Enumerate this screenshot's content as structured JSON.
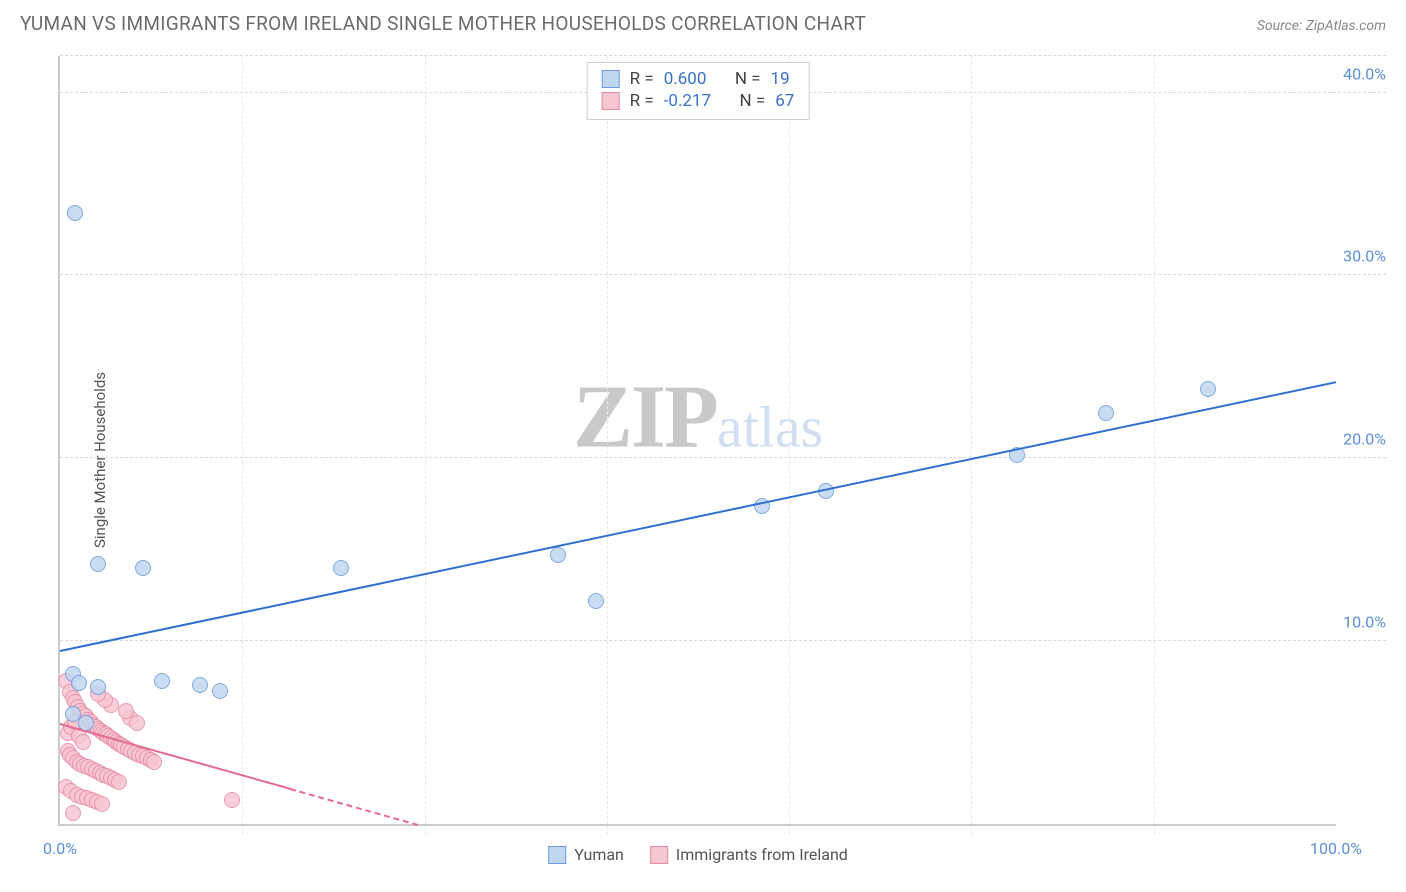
{
  "header": {
    "title": "YUMAN VS IMMIGRANTS FROM IRELAND SINGLE MOTHER HOUSEHOLDS CORRELATION CHART",
    "source": "Source: ZipAtlas.com"
  },
  "watermark": {
    "zip": "ZIP",
    "atlas": "atlas"
  },
  "chart": {
    "type": "scatter",
    "ylabel": "Single Mother Households",
    "xlim": [
      0,
      100
    ],
    "ylim": [
      0,
      42
    ],
    "xtick_min_label": "0.0%",
    "xtick_max_label": "100.0%",
    "ytick_labels": [
      "10.0%",
      "20.0%",
      "30.0%",
      "40.0%"
    ],
    "ytick_values": [
      10,
      20,
      30,
      40
    ],
    "xgrid_values": [
      14.3,
      28.6,
      42.9,
      57.1,
      71.4,
      85.7
    ],
    "axis_label_color": "#5a8fd6",
    "grid_color": "#d8d8d8",
    "background_color": "#ffffff",
    "series": {
      "yuman": {
        "label": "Yuman",
        "color_fill": "#c1d7f0",
        "color_stroke": "#6a9cd9",
        "line_color": "#2e6fd0",
        "r_label": "R =",
        "r_value": "0.600",
        "n_label": "N =",
        "n_value": "19",
        "regression": {
          "x0": 0,
          "y0": 9.5,
          "x1": 100,
          "y1": 24.2,
          "dashed": false
        },
        "points": [
          {
            "x": 1.2,
            "y": 33.4
          },
          {
            "x": 3.0,
            "y": 14.2
          },
          {
            "x": 6.5,
            "y": 14.0
          },
          {
            "x": 22.0,
            "y": 14.0
          },
          {
            "x": 39.0,
            "y": 14.7
          },
          {
            "x": 42.0,
            "y": 12.2
          },
          {
            "x": 55.0,
            "y": 17.4
          },
          {
            "x": 60.0,
            "y": 18.2
          },
          {
            "x": 75.0,
            "y": 20.2
          },
          {
            "x": 82.0,
            "y": 22.5
          },
          {
            "x": 90.0,
            "y": 23.8
          },
          {
            "x": 1.0,
            "y": 8.2
          },
          {
            "x": 1.5,
            "y": 7.7
          },
          {
            "x": 3.0,
            "y": 7.5
          },
          {
            "x": 8.0,
            "y": 7.8
          },
          {
            "x": 11.0,
            "y": 7.6
          },
          {
            "x": 12.5,
            "y": 7.3
          },
          {
            "x": 1.0,
            "y": 6.0
          },
          {
            "x": 2.0,
            "y": 5.5
          }
        ]
      },
      "ireland": {
        "label": "Immigrants from Ireland",
        "color_fill": "#f6c6d3",
        "color_stroke": "#e78aa5",
        "line_color": "#e46a8e",
        "r_label": "R =",
        "r_value": "-0.217",
        "n_label": "N =",
        "n_value": "67",
        "regression": {
          "x0": 0,
          "y0": 5.5,
          "x1": 28,
          "y1": 0,
          "dashed_after": 18
        },
        "points": [
          {
            "x": 0.5,
            "y": 7.8
          },
          {
            "x": 0.8,
            "y": 7.2
          },
          {
            "x": 1.0,
            "y": 6.9
          },
          {
            "x": 1.2,
            "y": 6.7
          },
          {
            "x": 1.4,
            "y": 6.4
          },
          {
            "x": 1.6,
            "y": 6.2
          },
          {
            "x": 1.8,
            "y": 6.0
          },
          {
            "x": 2.0,
            "y": 5.9
          },
          {
            "x": 2.2,
            "y": 5.7
          },
          {
            "x": 2.4,
            "y": 5.6
          },
          {
            "x": 2.6,
            "y": 5.4
          },
          {
            "x": 2.8,
            "y": 5.3
          },
          {
            "x": 3.0,
            "y": 5.2
          },
          {
            "x": 3.2,
            "y": 5.1
          },
          {
            "x": 3.4,
            "y": 5.0
          },
          {
            "x": 3.6,
            "y": 4.9
          },
          {
            "x": 3.8,
            "y": 4.8
          },
          {
            "x": 4.0,
            "y": 4.7
          },
          {
            "x": 4.2,
            "y": 4.6
          },
          {
            "x": 4.4,
            "y": 4.5
          },
          {
            "x": 4.6,
            "y": 4.4
          },
          {
            "x": 4.8,
            "y": 4.3
          },
          {
            "x": 5.0,
            "y": 4.2
          },
          {
            "x": 5.3,
            "y": 4.1
          },
          {
            "x": 5.6,
            "y": 4.0
          },
          {
            "x": 5.9,
            "y": 3.9
          },
          {
            "x": 6.2,
            "y": 3.8
          },
          {
            "x": 6.5,
            "y": 3.7
          },
          {
            "x": 6.8,
            "y": 3.6
          },
          {
            "x": 7.1,
            "y": 3.5
          },
          {
            "x": 7.4,
            "y": 3.4
          },
          {
            "x": 0.6,
            "y": 4.0
          },
          {
            "x": 0.8,
            "y": 3.8
          },
          {
            "x": 1.0,
            "y": 3.6
          },
          {
            "x": 1.3,
            "y": 3.4
          },
          {
            "x": 1.6,
            "y": 3.3
          },
          {
            "x": 1.9,
            "y": 3.2
          },
          {
            "x": 2.2,
            "y": 3.1
          },
          {
            "x": 2.5,
            "y": 3.0
          },
          {
            "x": 2.8,
            "y": 2.9
          },
          {
            "x": 3.1,
            "y": 2.8
          },
          {
            "x": 3.4,
            "y": 2.7
          },
          {
            "x": 3.7,
            "y": 2.6
          },
          {
            "x": 4.0,
            "y": 2.5
          },
          {
            "x": 4.3,
            "y": 2.4
          },
          {
            "x": 4.6,
            "y": 2.3
          },
          {
            "x": 0.5,
            "y": 2.0
          },
          {
            "x": 0.9,
            "y": 1.8
          },
          {
            "x": 1.3,
            "y": 1.6
          },
          {
            "x": 1.7,
            "y": 1.5
          },
          {
            "x": 2.1,
            "y": 1.4
          },
          {
            "x": 2.5,
            "y": 1.3
          },
          {
            "x": 2.9,
            "y": 1.2
          },
          {
            "x": 3.3,
            "y": 1.1
          },
          {
            "x": 0.6,
            "y": 5.0
          },
          {
            "x": 0.9,
            "y": 5.3
          },
          {
            "x": 1.2,
            "y": 5.6
          },
          {
            "x": 1.5,
            "y": 4.8
          },
          {
            "x": 1.8,
            "y": 4.5
          },
          {
            "x": 5.5,
            "y": 5.8
          },
          {
            "x": 6.0,
            "y": 5.5
          },
          {
            "x": 5.2,
            "y": 6.2
          },
          {
            "x": 4.0,
            "y": 6.5
          },
          {
            "x": 3.5,
            "y": 6.8
          },
          {
            "x": 3.0,
            "y": 7.1
          },
          {
            "x": 13.5,
            "y": 1.3
          },
          {
            "x": 1.0,
            "y": 0.6
          }
        ]
      }
    },
    "legend_bottom": [
      {
        "key": "yuman"
      },
      {
        "key": "ireland"
      }
    ],
    "marker_radius": 8,
    "marker_stroke_width": 1.5,
    "line_width": 2.5
  }
}
